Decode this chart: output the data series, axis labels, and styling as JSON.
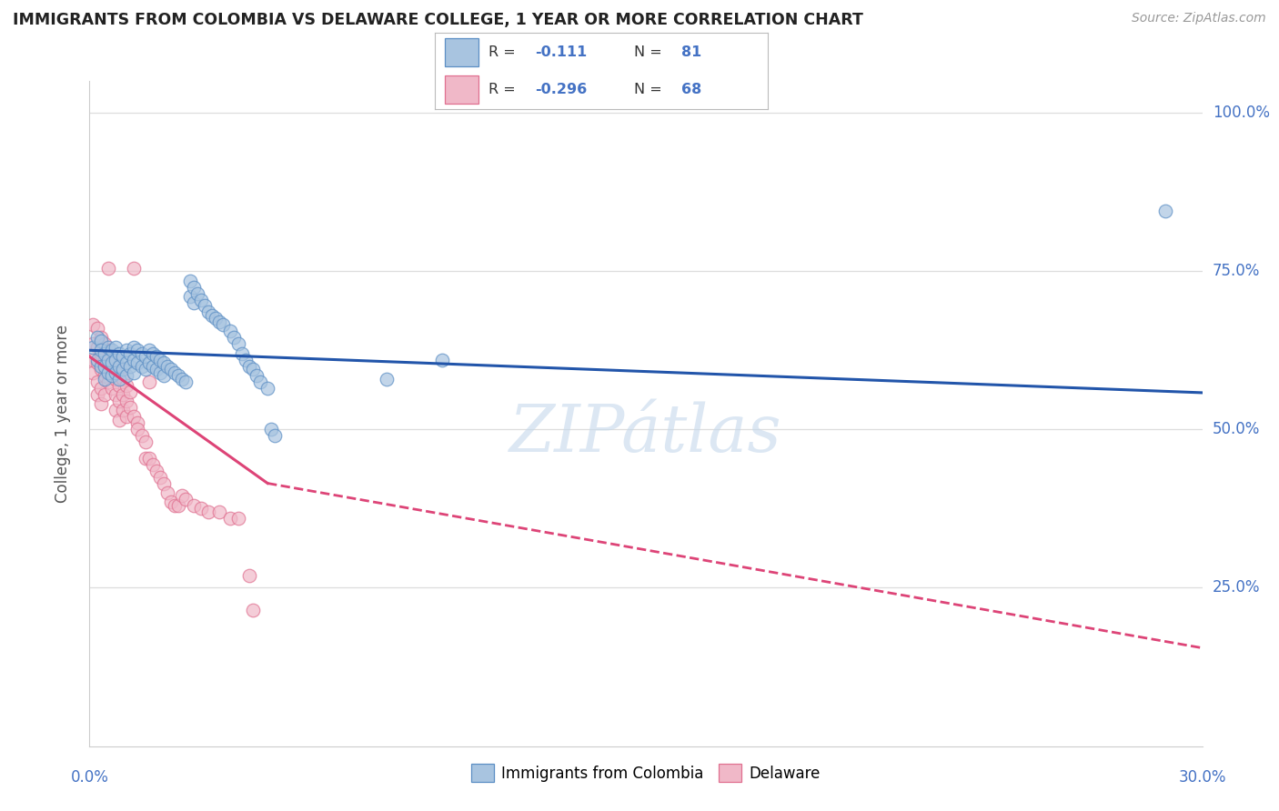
{
  "title": "IMMIGRANTS FROM COLOMBIA VS DELAWARE COLLEGE, 1 YEAR OR MORE CORRELATION CHART",
  "source": "Source: ZipAtlas.com",
  "ylabel": "College, 1 year or more",
  "legend1_label": "Immigrants from Colombia",
  "legend2_label": "Delaware",
  "r1": "-0.111",
  "n1": "81",
  "r2": "-0.296",
  "n2": "68",
  "blue_color": "#a8c4e0",
  "pink_color": "#f0b8c8",
  "blue_edge_color": "#5b8ec4",
  "pink_edge_color": "#e07090",
  "blue_line_color": "#2255aa",
  "pink_line_color": "#dd4477",
  "label_color": "#4472c4",
  "text_dark": "#333333",
  "blue_scatter": [
    [
      0.001,
      0.63
    ],
    [
      0.002,
      0.61
    ],
    [
      0.002,
      0.645
    ],
    [
      0.003,
      0.64
    ],
    [
      0.003,
      0.6
    ],
    [
      0.003,
      0.625
    ],
    [
      0.004,
      0.62
    ],
    [
      0.004,
      0.6
    ],
    [
      0.004,
      0.58
    ],
    [
      0.005,
      0.63
    ],
    [
      0.005,
      0.61
    ],
    [
      0.005,
      0.59
    ],
    [
      0.006,
      0.625
    ],
    [
      0.006,
      0.605
    ],
    [
      0.006,
      0.585
    ],
    [
      0.007,
      0.63
    ],
    [
      0.007,
      0.61
    ],
    [
      0.007,
      0.59
    ],
    [
      0.008,
      0.62
    ],
    [
      0.008,
      0.6
    ],
    [
      0.008,
      0.58
    ],
    [
      0.009,
      0.615
    ],
    [
      0.009,
      0.595
    ],
    [
      0.01,
      0.625
    ],
    [
      0.01,
      0.605
    ],
    [
      0.01,
      0.585
    ],
    [
      0.011,
      0.62
    ],
    [
      0.011,
      0.6
    ],
    [
      0.012,
      0.63
    ],
    [
      0.012,
      0.61
    ],
    [
      0.012,
      0.59
    ],
    [
      0.013,
      0.625
    ],
    [
      0.013,
      0.605
    ],
    [
      0.014,
      0.62
    ],
    [
      0.014,
      0.6
    ],
    [
      0.015,
      0.615
    ],
    [
      0.015,
      0.595
    ],
    [
      0.016,
      0.625
    ],
    [
      0.016,
      0.605
    ],
    [
      0.017,
      0.62
    ],
    [
      0.017,
      0.6
    ],
    [
      0.018,
      0.615
    ],
    [
      0.018,
      0.595
    ],
    [
      0.019,
      0.61
    ],
    [
      0.019,
      0.59
    ],
    [
      0.02,
      0.605
    ],
    [
      0.02,
      0.585
    ],
    [
      0.021,
      0.6
    ],
    [
      0.022,
      0.595
    ],
    [
      0.023,
      0.59
    ],
    [
      0.024,
      0.585
    ],
    [
      0.025,
      0.58
    ],
    [
      0.026,
      0.575
    ],
    [
      0.027,
      0.735
    ],
    [
      0.027,
      0.71
    ],
    [
      0.028,
      0.725
    ],
    [
      0.028,
      0.7
    ],
    [
      0.029,
      0.715
    ],
    [
      0.03,
      0.705
    ],
    [
      0.031,
      0.695
    ],
    [
      0.032,
      0.685
    ],
    [
      0.033,
      0.68
    ],
    [
      0.034,
      0.675
    ],
    [
      0.035,
      0.67
    ],
    [
      0.036,
      0.665
    ],
    [
      0.038,
      0.655
    ],
    [
      0.039,
      0.645
    ],
    [
      0.04,
      0.635
    ],
    [
      0.041,
      0.62
    ],
    [
      0.042,
      0.61
    ],
    [
      0.043,
      0.6
    ],
    [
      0.044,
      0.595
    ],
    [
      0.045,
      0.585
    ],
    [
      0.046,
      0.575
    ],
    [
      0.048,
      0.565
    ],
    [
      0.049,
      0.5
    ],
    [
      0.05,
      0.49
    ],
    [
      0.08,
      0.58
    ],
    [
      0.095,
      0.61
    ],
    [
      0.29,
      0.845
    ]
  ],
  "pink_scatter": [
    [
      0.001,
      0.665
    ],
    [
      0.001,
      0.635
    ],
    [
      0.001,
      0.61
    ],
    [
      0.001,
      0.59
    ],
    [
      0.002,
      0.66
    ],
    [
      0.002,
      0.63
    ],
    [
      0.002,
      0.605
    ],
    [
      0.002,
      0.575
    ],
    [
      0.002,
      0.555
    ],
    [
      0.003,
      0.645
    ],
    [
      0.003,
      0.62
    ],
    [
      0.003,
      0.595
    ],
    [
      0.003,
      0.565
    ],
    [
      0.003,
      0.54
    ],
    [
      0.004,
      0.635
    ],
    [
      0.004,
      0.61
    ],
    [
      0.004,
      0.585
    ],
    [
      0.004,
      0.555
    ],
    [
      0.005,
      0.755
    ],
    [
      0.005,
      0.625
    ],
    [
      0.005,
      0.6
    ],
    [
      0.005,
      0.575
    ],
    [
      0.006,
      0.615
    ],
    [
      0.006,
      0.59
    ],
    [
      0.006,
      0.565
    ],
    [
      0.007,
      0.605
    ],
    [
      0.007,
      0.58
    ],
    [
      0.007,
      0.555
    ],
    [
      0.007,
      0.53
    ],
    [
      0.008,
      0.595
    ],
    [
      0.008,
      0.57
    ],
    [
      0.008,
      0.545
    ],
    [
      0.008,
      0.515
    ],
    [
      0.009,
      0.58
    ],
    [
      0.009,
      0.555
    ],
    [
      0.009,
      0.53
    ],
    [
      0.01,
      0.57
    ],
    [
      0.01,
      0.545
    ],
    [
      0.01,
      0.52
    ],
    [
      0.011,
      0.56
    ],
    [
      0.011,
      0.535
    ],
    [
      0.012,
      0.755
    ],
    [
      0.012,
      0.52
    ],
    [
      0.013,
      0.51
    ],
    [
      0.013,
      0.5
    ],
    [
      0.014,
      0.49
    ],
    [
      0.015,
      0.48
    ],
    [
      0.015,
      0.455
    ],
    [
      0.016,
      0.575
    ],
    [
      0.016,
      0.455
    ],
    [
      0.017,
      0.445
    ],
    [
      0.018,
      0.435
    ],
    [
      0.019,
      0.425
    ],
    [
      0.02,
      0.415
    ],
    [
      0.021,
      0.4
    ],
    [
      0.022,
      0.385
    ],
    [
      0.023,
      0.38
    ],
    [
      0.024,
      0.38
    ],
    [
      0.025,
      0.395
    ],
    [
      0.026,
      0.39
    ],
    [
      0.028,
      0.38
    ],
    [
      0.03,
      0.375
    ],
    [
      0.032,
      0.37
    ],
    [
      0.035,
      0.37
    ],
    [
      0.038,
      0.36
    ],
    [
      0.04,
      0.36
    ],
    [
      0.043,
      0.27
    ],
    [
      0.044,
      0.215
    ]
  ],
  "xlim": [
    0.0,
    0.3
  ],
  "ylim": [
    0.0,
    1.05
  ],
  "y_tick_vals": [
    0.25,
    0.5,
    0.75,
    1.0
  ],
  "y_tick_labels": [
    "25.0%",
    "50.0%",
    "75.0%",
    "100.0%"
  ],
  "blue_trendline": [
    [
      0.0,
      0.625
    ],
    [
      0.3,
      0.558
    ]
  ],
  "pink_trendline_solid": [
    [
      0.0,
      0.615
    ],
    [
      0.048,
      0.415
    ]
  ],
  "pink_trendline_dash": [
    [
      0.048,
      0.415
    ],
    [
      0.3,
      0.155
    ]
  ],
  "grid_color": "#dddddd",
  "watermark_color": "#c5d8ec",
  "watermark_alpha": 0.6
}
